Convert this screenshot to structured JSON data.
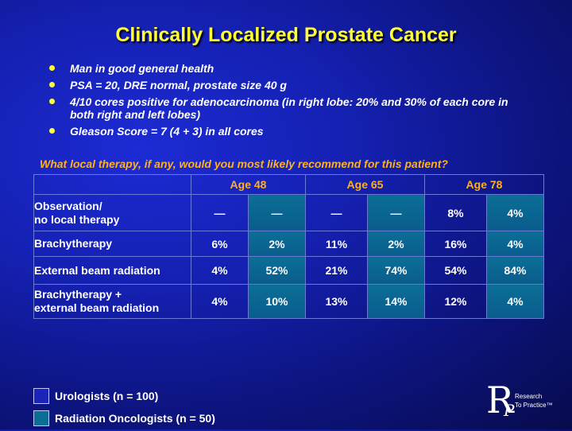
{
  "title": "Clinically Localized Prostate Cancer",
  "bullets": [
    "Man in good general health",
    "PSA = 20, DRE normal, prostate size 40 g",
    "4/10 cores positive for adenocarcinoma (in right lobe: 20% and 30% of each core in both right and left lobes)",
    "Gleason Score = 7 (4 + 3) in all cores"
  ],
  "question": "What local therapy, if any, would you most likely recommend for this patient?",
  "table": {
    "ages": [
      "Age 48",
      "Age 65",
      "Age 78"
    ],
    "rows": [
      {
        "label_lines": [
          "Observation/",
          "no local therapy"
        ],
        "values": [
          "—",
          "—",
          "—",
          "—",
          "8%",
          "4%"
        ]
      },
      {
        "label_lines": [
          "Brachytherapy"
        ],
        "values": [
          "6%",
          "2%",
          "11%",
          "2%",
          "16%",
          "4%"
        ]
      },
      {
        "label_lines": [
          "External beam radiation"
        ],
        "values": [
          "4%",
          "52%",
          "21%",
          "74%",
          "54%",
          "84%"
        ]
      },
      {
        "label_lines": [
          "Brachytherapy +",
          "external beam radiation"
        ],
        "values": [
          "4%",
          "10%",
          "13%",
          "14%",
          "12%",
          "4%"
        ]
      }
    ]
  },
  "legend": [
    {
      "label": "Urologists  (n = 100)",
      "color": "#1a24b8"
    },
    {
      "label": "Radiation Oncologists  (n = 50)",
      "color": "#0b6e96"
    }
  ],
  "logo": {
    "letter_r": "R",
    "letter_p": "P",
    "line1": "Research",
    "line2": "To Practice™"
  },
  "colors": {
    "title": "#ffff33",
    "accent": "#ffb020",
    "radiation_cell": "#0b6e96"
  }
}
